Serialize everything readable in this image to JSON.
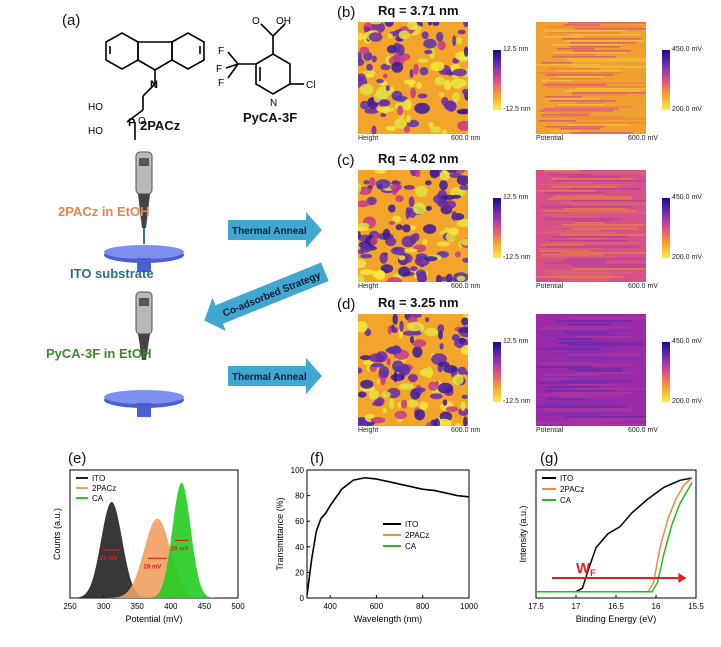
{
  "panels": {
    "a": "(a)",
    "b": "(b)",
    "c": "(c)",
    "d": "(d)",
    "e": "(e)",
    "f": "(f)",
    "g": "(g)"
  },
  "molecules": {
    "m1": "2PACz",
    "m2": "PyCA-3F",
    "atoms": {
      "oh": "OH",
      "o": "O",
      "f": "F",
      "n": "N",
      "cl": "Cl",
      "ho": "HO",
      "p": "P"
    }
  },
  "process": {
    "step1": "2PACz in EtOH",
    "substrate": "ITO substrate",
    "step2": "PyCA-3F in EtOH",
    "anneal1": "Thermal Anneal",
    "coadsorb": "Co-adsorbed Strategy",
    "anneal2": "Thermal Anneal",
    "colors": {
      "step1": "#e8844a",
      "substrate": "#2a6f8a",
      "step2": "#3d8a2c",
      "arrow": "#3fa7d0"
    }
  },
  "afm": [
    {
      "rq": "Rq = 3.71 nm",
      "height_label": "Height",
      "scale": "600.0 nm",
      "potential_label": "Potential",
      "hmax": "12.5 nm",
      "hmin": "-12.5 nm",
      "pmax": "450.0 mV",
      "pmin": "200.0 mV"
    },
    {
      "rq": "Rq = 4.02 nm",
      "height_label": "Height",
      "scale": "600.0 nm",
      "potential_label": "Potential",
      "hmax": "12.5 nm",
      "hmin": "-12.5 nm",
      "pmax": "450.0 mV",
      "pmin": "200.0 mV"
    },
    {
      "rq": "Rq = 3.25 nm",
      "height_label": "Height",
      "scale": "600.0 nm",
      "potential_label": "Potential",
      "hmax": "12.5 nm",
      "hmin": "-12.5 nm",
      "pmax": "450.0 mV",
      "pmin": "200.0 mV"
    }
  ],
  "pscale": "600.0 mV",
  "chart_data": [
    {
      "type": "area",
      "panel": "(e)",
      "xlabel": "Potential (mV)",
      "ylabel": "Counts (a.u.)",
      "xlim": [
        250,
        500
      ],
      "xticks": [
        250,
        300,
        350,
        400,
        450,
        500
      ],
      "series": [
        {
          "name": "ITO",
          "color": "#222222",
          "center": 312,
          "fwhm": 23,
          "fwhm_label": "23 mV"
        },
        {
          "name": "2PACz",
          "color": "#f0a060",
          "center": 380,
          "fwhm": 29,
          "fwhm_label": "29 mV"
        },
        {
          "name": "CA",
          "color": "#22cc22",
          "center": 416,
          "fwhm": 20,
          "fwhm_label": "20 mV"
        }
      ]
    },
    {
      "type": "line",
      "panel": "(f)",
      "xlabel": "Wavelength (nm)",
      "ylabel": "Transmittance (%)",
      "xlim": [
        300,
        1000
      ],
      "ylim": [
        0,
        100
      ],
      "xticks": [
        400,
        600,
        800,
        1000
      ],
      "yticks": [
        0,
        20,
        40,
        60,
        80,
        100
      ],
      "series": [
        {
          "name": "ITO",
          "color": "#000000"
        },
        {
          "name": "2PACz",
          "color": "#f08a3a"
        },
        {
          "name": "CA",
          "color": "#22bb22"
        }
      ],
      "x": [
        300,
        320,
        340,
        360,
        380,
        400,
        450,
        500,
        550,
        600,
        650,
        700,
        750,
        800,
        850,
        900,
        950,
        1000
      ],
      "y": [
        2,
        30,
        52,
        62,
        66,
        72,
        85,
        92,
        94,
        93,
        91,
        89,
        87,
        85,
        84,
        82,
        80,
        79
      ]
    },
    {
      "type": "line",
      "panel": "(g)",
      "xlabel": "Binding Energy (eV)",
      "ylabel": "Intensity (a.u.)",
      "xlim": [
        17.5,
        15.5
      ],
      "xticks": [
        17.5,
        17.0,
        16.5,
        16.0,
        15.5
      ],
      "series": [
        {
          "name": "ITO",
          "color": "#000000",
          "x": [
            17.5,
            17.0,
            16.92,
            16.85,
            16.75,
            16.6,
            16.45,
            16.3,
            16.1,
            15.9,
            15.7,
            15.55
          ],
          "y": [
            0.02,
            0.02,
            0.05,
            0.2,
            0.4,
            0.52,
            0.58,
            0.7,
            0.82,
            0.92,
            0.98,
            1.0
          ]
        },
        {
          "name": "2PACz",
          "color": "#f08a3a",
          "x": [
            17.5,
            16.1,
            16.03,
            15.95,
            15.85,
            15.75,
            15.65,
            15.55
          ],
          "y": [
            0.02,
            0.02,
            0.1,
            0.4,
            0.65,
            0.82,
            0.94,
            1.0
          ]
        },
        {
          "name": "CA",
          "color": "#22bb22",
          "x": [
            17.5,
            16.05,
            15.98,
            15.9,
            15.8,
            15.7,
            15.6,
            15.55
          ],
          "y": [
            0.02,
            0.02,
            0.1,
            0.35,
            0.6,
            0.78,
            0.9,
            0.96
          ]
        }
      ],
      "annotation": {
        "text": "W",
        "sub": "F",
        "color": "#e02020"
      }
    }
  ]
}
